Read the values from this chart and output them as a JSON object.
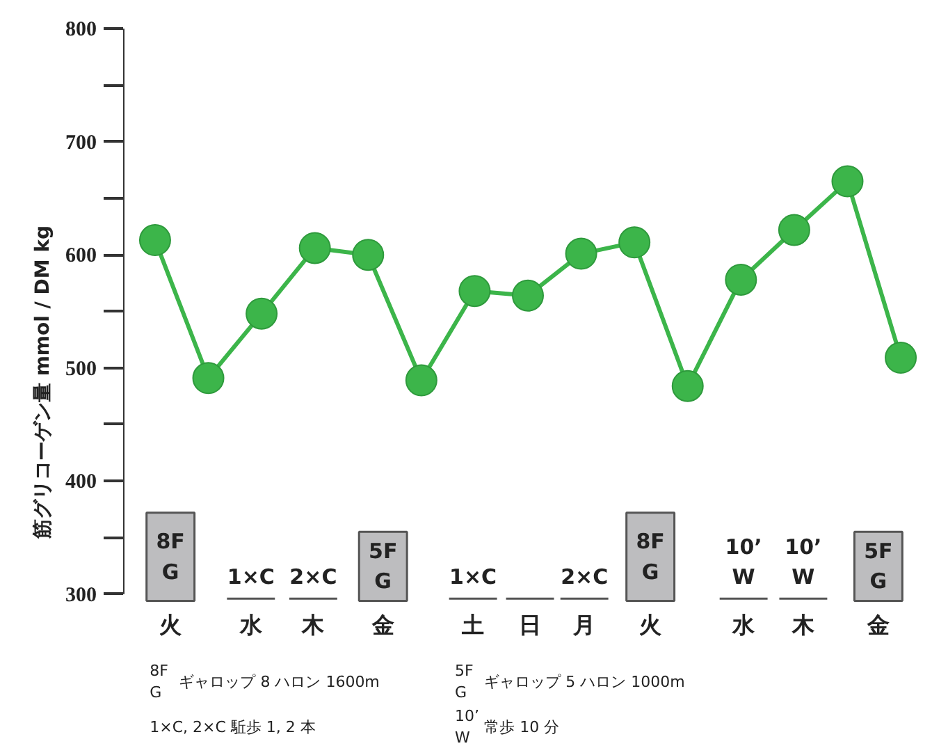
{
  "chart_data": {
    "type": "line",
    "ylabel": "筋グリコーゲン量 mmol / DM kg",
    "categories": [
      null,
      null,
      null,
      null,
      null,
      null,
      null,
      null,
      null,
      null,
      null,
      null,
      null,
      null,
      null
    ],
    "series": [
      {
        "color": "#3cb54a",
        "values": [
          613,
          491,
          548,
          606,
          600,
          489,
          568,
          564,
          601,
          611,
          484,
          578,
          622,
          665,
          509
        ]
      }
    ],
    "ylim": [
      300,
      800
    ],
    "yticks": [
      300,
      {
        "value": 350,
        "label": null
      },
      400,
      {
        "value": 450,
        "label": null
      },
      500,
      {
        "value": 550,
        "label": null
      },
      600,
      {
        "value": 650,
        "label": null
      },
      700,
      {
        "value": 750,
        "label": null
      },
      800
    ],
    "marker": "circle",
    "line_style": "solid",
    "annotations": [
      "火",
      "水",
      "木",
      "金",
      "土",
      "日",
      "月",
      "火",
      "水",
      "木",
      "金",
      "8F\nG",
      "1×C",
      "2×C",
      "5F\nG",
      "1×C",
      "2×C",
      "8F\nG",
      "10’\nW",
      "10’\nW",
      "5F\nG",
      "ギャロップ 8 ハロン 1600m",
      "1×C, 2×C 駈歩 1, 2 本",
      "ギャロップ 5 ハロン 1000m",
      "常歩 10 分"
    ]
  }
}
